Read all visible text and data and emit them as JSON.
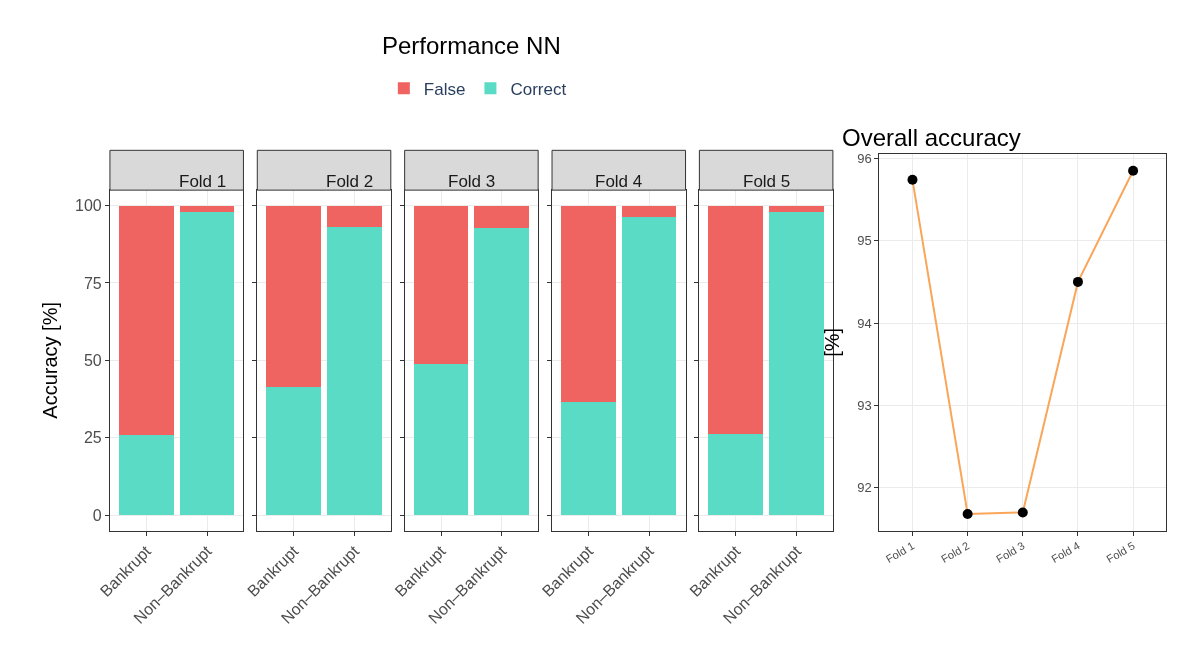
{
  "chart_data": [
    {
      "type": "bar",
      "title": "Fold 1",
      "annotations": [
        "Performance NN"
      ],
      "ylabel": "Accuracy [%]",
      "categories": [
        "Bankrupt",
        "Non–Bankrupt"
      ],
      "stacked": true,
      "ylim": [
        -5,
        105
      ],
      "yticks": [
        0,
        25,
        50,
        75,
        100
      ],
      "grid": true,
      "legend": "top",
      "series": [
        {
          "name": "Correct",
          "color": "#59dbc6",
          "values": [
            26,
            97.8
          ]
        },
        {
          "name": "False",
          "color": "#ef6461",
          "values": [
            74,
            2.2
          ]
        }
      ]
    },
    {
      "type": "bar",
      "title": "Fold 2",
      "categories": [
        "Bankrupt",
        "Non–Bankrupt"
      ],
      "stacked": true,
      "ylim": [
        -5,
        105
      ],
      "yticks": [
        0,
        25,
        50,
        75,
        100
      ],
      "grid": true,
      "tick_labels": "x",
      "series": [
        {
          "color": "#59dbc6",
          "values": [
            41.5,
            93.0
          ]
        },
        {
          "color": "#ef6461",
          "values": [
            58.5,
            7.0
          ]
        }
      ]
    },
    {
      "type": "bar",
      "title": "Fold 3",
      "categories": [
        "Bankrupt",
        "Non–Bankrupt"
      ],
      "stacked": true,
      "ylim": [
        -5,
        105
      ],
      "yticks": [
        0,
        25,
        50,
        75,
        100
      ],
      "grid": true,
      "tick_labels": "x",
      "series": [
        {
          "color": "#59dbc6",
          "values": [
            48.8,
            92.6
          ]
        },
        {
          "color": "#ef6461",
          "values": [
            51.2,
            7.4
          ]
        }
      ]
    },
    {
      "type": "bar",
      "title": "Fold 4",
      "categories": [
        "Bankrupt",
        "Non–Bankrupt"
      ],
      "stacked": true,
      "ylim": [
        -5,
        105
      ],
      "yticks": [
        0,
        25,
        50,
        75,
        100
      ],
      "grid": true,
      "tick_labels": "x",
      "series": [
        {
          "color": "#59dbc6",
          "values": [
            36.4,
            96.2
          ]
        },
        {
          "color": "#ef6461",
          "values": [
            63.6,
            3.8
          ]
        }
      ]
    },
    {
      "type": "bar",
      "title": "Fold 5",
      "categories": [
        "Bankrupt",
        "Non–Bankrupt"
      ],
      "stacked": true,
      "ylim": [
        -5,
        105
      ],
      "yticks": [
        0,
        25,
        50,
        75,
        100
      ],
      "grid": true,
      "tick_labels": "x",
      "series": [
        {
          "color": "#59dbc6",
          "values": [
            26.3,
            97.8
          ]
        },
        {
          "color": "#ef6461",
          "values": [
            73.7,
            2.2
          ]
        }
      ]
    },
    {
      "type": "line",
      "title": "Overall accuracy",
      "ylabel": "[%]",
      "categories": [
        "Fold 1",
        "Fold 2",
        "Fold 3",
        "Fold 4",
        "Fold 5"
      ],
      "ylim": [
        91.48,
        96.05
      ],
      "yticks": [
        92,
        93,
        94,
        95,
        96
      ],
      "grid": true,
      "marker": "circle",
      "series": [
        {
          "color": "#f9a65a",
          "values": [
            95.74,
            91.68,
            91.7,
            94.5,
            95.85
          ]
        }
      ]
    }
  ]
}
